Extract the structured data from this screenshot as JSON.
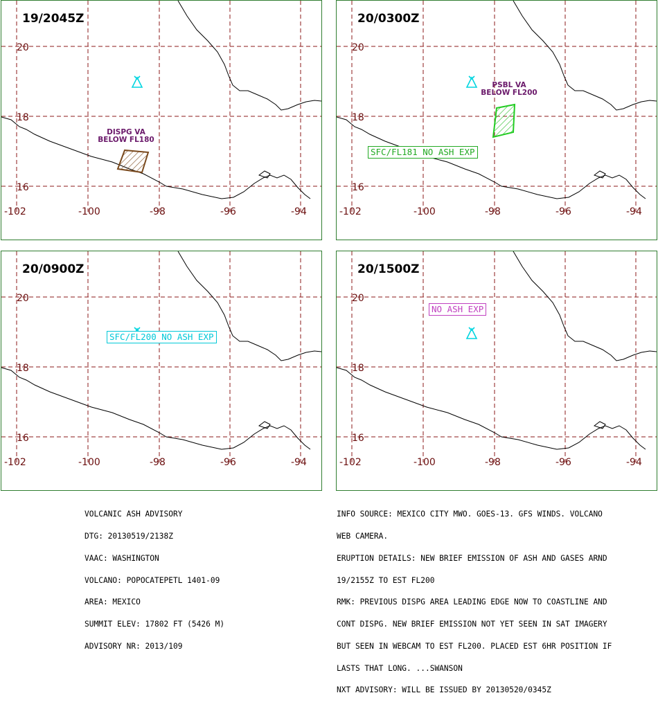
{
  "panels": [
    {
      "time": "19/2045Z",
      "lat_labels": [
        "20",
        "18",
        "16"
      ],
      "lon_labels": [
        "-102",
        "-100",
        "-98",
        "-96",
        "-94"
      ],
      "area_label_line1": "DISPG VA",
      "area_label_line2": "BELOW FL180",
      "area_color": "#7a4a1e",
      "box_label": ""
    },
    {
      "time": "20/0300Z",
      "lat_labels": [
        "20",
        "18",
        "16"
      ],
      "lon_labels": [
        "-102",
        "-100",
        "-98",
        "-96",
        "-94"
      ],
      "area_label_line1": "PSBL VA",
      "area_label_line2": "BELOW FL200",
      "area_color": "#22cc22",
      "box_label": "SFC/FL181 NO ASH EXP"
    },
    {
      "time": "20/0900Z",
      "lat_labels": [
        "20",
        "18",
        "16"
      ],
      "lon_labels": [
        "-102",
        "-100",
        "-98",
        "-96",
        "-94"
      ],
      "box_label": "SFC/FL200 NO ASH EXP"
    },
    {
      "time": "20/1500Z",
      "lat_labels": [
        "20",
        "18",
        "16"
      ],
      "lon_labels": [
        "-102",
        "-100",
        "-98",
        "-96",
        "-94"
      ],
      "box_label": "NO ASH EXP"
    }
  ],
  "colors": {
    "grid": "#8b1a1a",
    "frame": "#2f7d2f",
    "volcano": "#00d5e0",
    "panel2_box": "#22aa22",
    "panel3_box": "#00c8d8",
    "panel4_box": "#c040c0"
  },
  "icons": {
    "volcano": "volcano-triangle-icon"
  },
  "advisory_left": {
    "line1": "VOLCANIC ASH ADVISORY",
    "line2": "DTG: 20130519/2138Z",
    "line3": "VAAC: WASHINGTON",
    "line4": "VOLCANO: POPOCATEPETL 1401-09",
    "line5": "AREA: MEXICO",
    "line6": "SUMMIT ELEV: 17802 FT (5426 M)",
    "line7": "ADVISORY NR: 2013/109"
  },
  "advisory_right": {
    "line1": "INFO SOURCE: MEXICO CITY MWO. GOES-13. GFS WINDS. VOLCANO",
    "line2": "WEB CAMERA.",
    "line3": "ERUPTION DETAILS: NEW BRIEF EMISSION OF ASH AND GASES ARND",
    "line4": "19/2155Z TO EST FL200",
    "line5": "RMK: PREVIOUS DISPG AREA LEADING EDGE NOW TO COASTLINE AND",
    "line6": "CONT DISPG. NEW BRIEF EMISSION NOT YET SEEN IN SAT IMAGERY",
    "line7": "BUT SEEN IN WEBCAM TO EST FL200. PLACED EST 6HR POSITION IF",
    "line8": "LASTS THAT LONG. ...SWANSON",
    "line9": "NXT ADVISORY: WILL BE ISSUED BY 20130520/0345Z"
  }
}
